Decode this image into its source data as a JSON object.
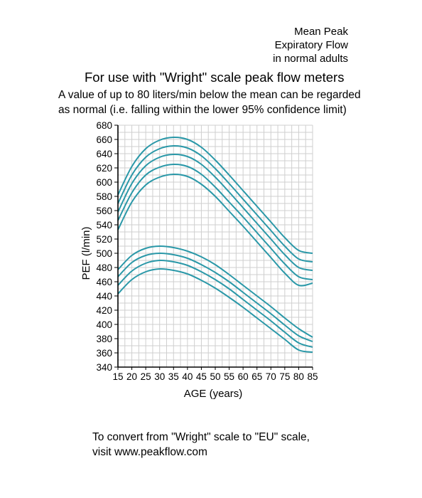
{
  "header": {
    "title_lines": [
      "Mean Peak",
      "Expiratory Flow",
      "in normal adults"
    ],
    "subtitle": "For use with \"Wright\" scale peak flow meters",
    "note_lines": [
      "A value of up to 80 liters/min below the mean can be regarded",
      "as normal (i.e. falling within the lower 95% confidence limit)"
    ]
  },
  "footer": {
    "lines": [
      "To convert from \"Wright\" scale to \"EU\" scale,",
      "visit www.peakflow.com"
    ]
  },
  "chart_data": {
    "type": "line",
    "xlabel": "AGE (years)",
    "ylabel": "PEF (l/min)",
    "xlim": [
      15,
      85
    ],
    "ylim": [
      340,
      680
    ],
    "xticks": [
      15,
      20,
      25,
      30,
      35,
      40,
      45,
      50,
      55,
      60,
      65,
      70,
      75,
      80,
      85
    ],
    "yticks": [
      340,
      360,
      380,
      400,
      420,
      440,
      460,
      480,
      500,
      520,
      540,
      560,
      580,
      600,
      620,
      640,
      660,
      680
    ],
    "grid": true,
    "line_color": "#2a98a8",
    "x": [
      15,
      20,
      25,
      30,
      35,
      40,
      45,
      50,
      55,
      60,
      65,
      70,
      75,
      80,
      85
    ],
    "series": [
      {
        "values": [
          582,
          622,
          647,
          659,
          663,
          660,
          649,
          631,
          610,
          588,
          566,
          544,
          522,
          504,
          500
        ]
      },
      {
        "values": [
          570,
          610,
          635,
          647,
          651,
          648,
          637,
          619,
          598,
          576,
          554,
          532,
          510,
          492,
          488
        ]
      },
      {
        "values": [
          558,
          598,
          623,
          635,
          639,
          636,
          625,
          607,
          586,
          564,
          542,
          520,
          498,
          480,
          476
        ]
      },
      {
        "values": [
          546,
          585,
          610,
          621,
          625,
          622,
          611,
          593,
          572,
          551,
          529,
          507,
          485,
          467,
          463
        ]
      },
      {
        "values": [
          533,
          572,
          596,
          607,
          611,
          608,
          597,
          580,
          559,
          538,
          516,
          494,
          472,
          455,
          458
        ]
      },
      {
        "values": [
          477,
          497,
          507,
          510,
          508,
          503,
          495,
          484,
          470,
          455,
          440,
          425,
          409,
          394,
          382
        ]
      },
      {
        "values": [
          467,
          487,
          497,
          500,
          498,
          493,
          484,
          473,
          460,
          445,
          430,
          415,
          399,
          384,
          376
        ]
      },
      {
        "values": [
          455,
          475,
          486,
          490,
          488,
          483,
          474,
          463,
          450,
          435,
          420,
          405,
          389,
          374,
          368
        ]
      },
      {
        "values": [
          443,
          463,
          474,
          478,
          476,
          471,
          462,
          451,
          438,
          424,
          409,
          394,
          379,
          364,
          361
        ]
      }
    ]
  }
}
